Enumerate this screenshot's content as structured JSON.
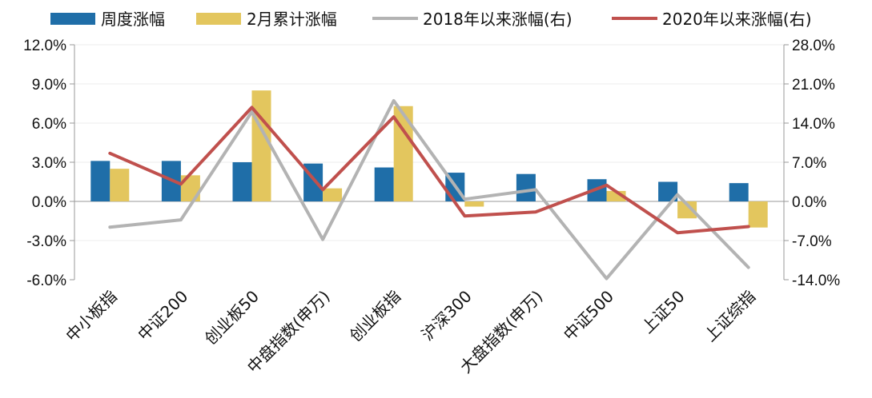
{
  "chart_data": {
    "type": "bar",
    "categories": [
      "中小板指",
      "中证200",
      "创业板50",
      "中盘指数(申万)",
      "创业板指",
      "沪深300",
      "大盘指数(申万)",
      "中证500",
      "上证50",
      "上证综指"
    ],
    "series": [
      {
        "name": "周度涨幅",
        "type": "bar",
        "axis": "left",
        "color": "#1f6ea8",
        "values": [
          3.1,
          3.1,
          3.0,
          2.9,
          2.6,
          2.2,
          2.1,
          1.7,
          1.5,
          1.4
        ]
      },
      {
        "name": "2月累计涨幅",
        "type": "bar",
        "axis": "left",
        "color": "#e3c65e",
        "values": [
          2.5,
          2.0,
          8.5,
          1.0,
          7.3,
          -0.4,
          0.0,
          0.8,
          -1.3,
          -2.0
        ]
      },
      {
        "name": "2018年以来涨幅(右)",
        "type": "line",
        "axis": "right",
        "color": "#b3b3b3",
        "values": [
          -4.6,
          -3.3,
          16.0,
          -6.8,
          18.0,
          0.4,
          2.1,
          -13.8,
          1.2,
          -11.8
        ]
      },
      {
        "name": "2020年以来涨幅(右)",
        "type": "line",
        "axis": "right",
        "color": "#c0504d",
        "values": [
          8.6,
          3.1,
          16.8,
          2.1,
          15.1,
          -2.6,
          -1.9,
          2.9,
          -5.6,
          -4.5
        ]
      }
    ],
    "left_axis": {
      "min": -6,
      "max": 12,
      "ticks": [
        "12.0%",
        "9.0%",
        "6.0%",
        "3.0%",
        "0.0%",
        "-3.0%",
        "-6.0%"
      ]
    },
    "right_axis": {
      "min": -14,
      "max": 28,
      "ticks": [
        "28.0%",
        "21.0%",
        "14.0%",
        "7.0%",
        "0.0%",
        "-7.0%",
        "-14.0%"
      ]
    },
    "title": "",
    "legend_position": "top"
  }
}
